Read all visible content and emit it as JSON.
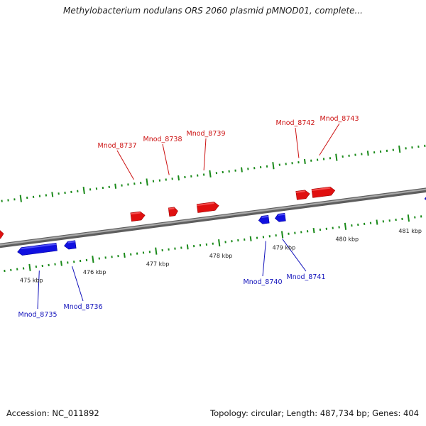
{
  "title": "Methylobacterium nodulans ORS 2060 plasmid pMNOD01, complete...",
  "footer": {
    "accession_label": "Accession: NC_011892",
    "topology_label": "Topology: circular; Length: 487,734 bp; Genes: 404"
  },
  "colors": {
    "forward_gene": "#e01010",
    "reverse_gene": "#1010e0",
    "forward_label": "#cc1111",
    "reverse_label": "#1111bb",
    "backbone": "#808080",
    "tick": "#1a8a1a"
  },
  "scale": {
    "unit": "kbp",
    "visible_start_kbp": 474.6,
    "visible_end_kbp": 481.4,
    "major_ticks": [
      {
        "kbp": 475,
        "label": "475 kbp"
      },
      {
        "kbp": 476,
        "label": "476 kbp"
      },
      {
        "kbp": 477,
        "label": "477 kbp"
      },
      {
        "kbp": 478,
        "label": "478 kbp"
      },
      {
        "kbp": 479,
        "label": "479 kbp"
      },
      {
        "kbp": 480,
        "label": "480 kbp"
      },
      {
        "kbp": 481,
        "label": "481 kbp"
      }
    ]
  },
  "genes": [
    {
      "id": "Mnod_8735",
      "strand": "-",
      "start_kbp": 474.84,
      "end_kbp": 475.46,
      "label": "Mnod_8735"
    },
    {
      "id": "Mnod_8736",
      "strand": "-",
      "start_kbp": 475.58,
      "end_kbp": 475.76,
      "label": "Mnod_8736"
    },
    {
      "id": "Mnod_8737",
      "strand": "+",
      "start_kbp": 476.68,
      "end_kbp": 476.9,
      "label": "Mnod_8737"
    },
    {
      "id": "Mnod_8738",
      "strand": "+",
      "start_kbp": 477.28,
      "end_kbp": 477.42,
      "label": "Mnod_8738"
    },
    {
      "id": "Mnod_8739",
      "strand": "+",
      "start_kbp": 477.73,
      "end_kbp": 478.07,
      "label": "Mnod_8739"
    },
    {
      "id": "Mnod_8740",
      "strand": "-",
      "start_kbp": 478.66,
      "end_kbp": 478.82,
      "label": "Mnod_8740"
    },
    {
      "id": "Mnod_8741",
      "strand": "-",
      "start_kbp": 478.92,
      "end_kbp": 479.08,
      "label": "Mnod_8741"
    },
    {
      "id": "Mnod_8742",
      "strand": "+",
      "start_kbp": 479.3,
      "end_kbp": 479.51,
      "label": "Mnod_8742"
    },
    {
      "id": "Mnod_8743",
      "strand": "+",
      "start_kbp": 479.55,
      "end_kbp": 479.91,
      "label": "Mnod_8743"
    }
  ],
  "edge_genes": [
    {
      "strand": "+",
      "start_kbp": 474.5,
      "end_kbp": 474.66
    },
    {
      "strand": "-",
      "start_kbp": 481.29,
      "end_kbp": 481.5
    }
  ]
}
